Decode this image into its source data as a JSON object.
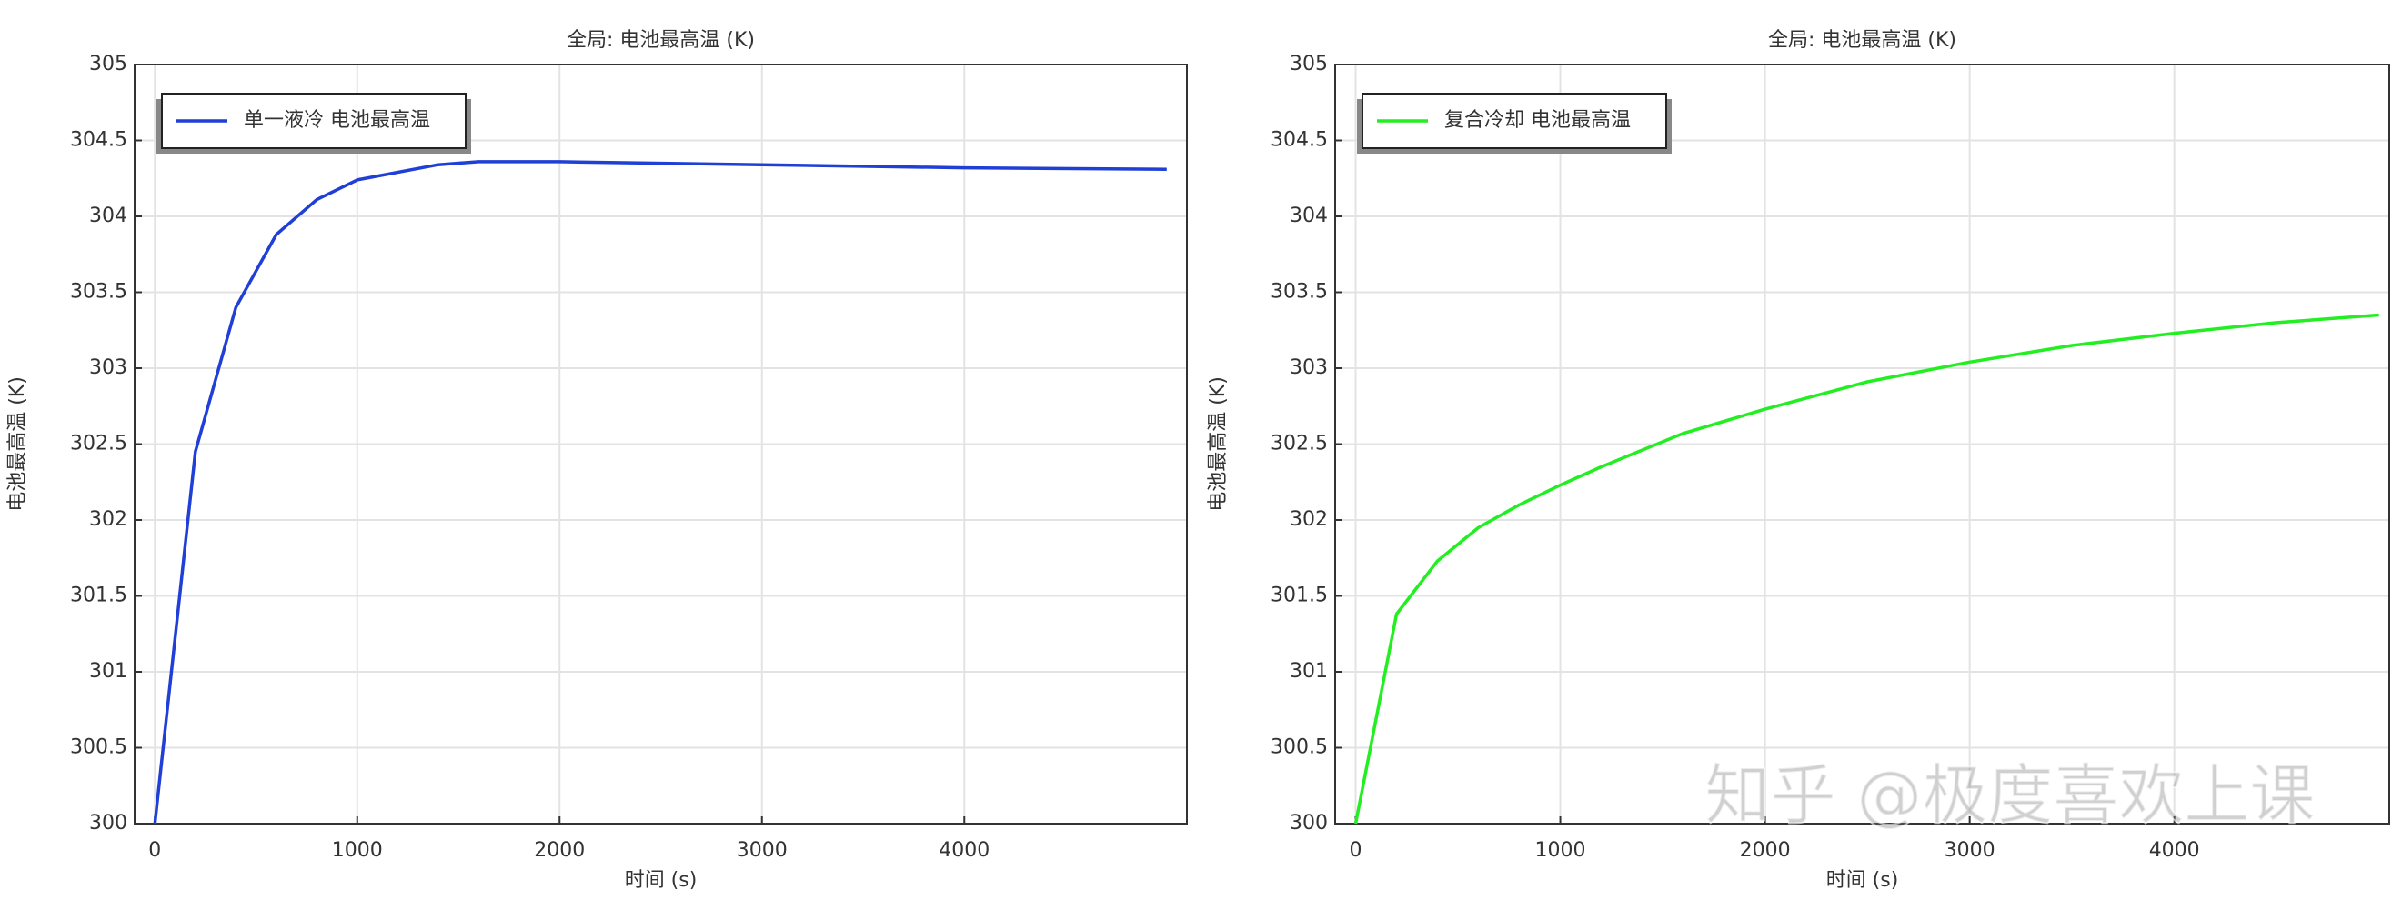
{
  "chart_data": [
    {
      "type": "line",
      "title": "全局: 电池最高温 (K)",
      "xlabel": "时间 (s)",
      "ylabel": "电池最高温 (K)",
      "x": [
        0,
        200,
        400,
        600,
        800,
        1000,
        1400,
        1600,
        2000,
        3000,
        4000,
        5000
      ],
      "series": [
        {
          "name": "单一液冷 电池最高温",
          "color": "#1f3fd6",
          "values": [
            300,
            302.45,
            303.4,
            303.88,
            304.11,
            304.24,
            304.34,
            304.36,
            304.36,
            304.34,
            304.32,
            304.31
          ]
        }
      ],
      "xlim": [
        -100,
        5100
      ],
      "ylim": [
        300,
        305
      ],
      "xticks": [
        0,
        1000,
        2000,
        3000,
        4000
      ],
      "yticks": [
        300,
        300.5,
        301,
        301.5,
        302,
        302.5,
        303,
        303.5,
        304,
        304.5,
        305
      ],
      "grid": true,
      "legend": "upper-left"
    },
    {
      "type": "line",
      "title": "全局: 电池最高温 (K)",
      "xlabel": "时间 (s)",
      "ylabel": "电池最高温 (K)",
      "x": [
        0,
        200,
        400,
        600,
        800,
        1000,
        1200,
        1600,
        2000,
        2500,
        3000,
        3500,
        4000,
        4500,
        5000
      ],
      "series": [
        {
          "name": "复合冷却 电池最高温",
          "color": "#22ee22",
          "values": [
            300,
            301.38,
            301.73,
            301.95,
            302.1,
            302.23,
            302.35,
            302.57,
            302.73,
            302.91,
            303.04,
            303.15,
            303.23,
            303.3,
            303.35
          ]
        }
      ],
      "xlim": [
        -100,
        5050
      ],
      "ylim": [
        300,
        305
      ],
      "xticks": [
        0,
        1000,
        2000,
        3000,
        4000
      ],
      "yticks": [
        300,
        300.5,
        301,
        301.5,
        302,
        302.5,
        303,
        303.5,
        304,
        304.5,
        305
      ],
      "grid": true,
      "legend": "upper-left"
    }
  ],
  "watermark": "知乎 @极度喜欢上课"
}
